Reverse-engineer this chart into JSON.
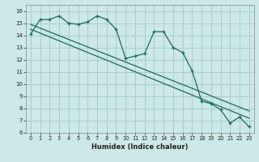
{
  "xlabel": "Humidex (Indice chaleur)",
  "bg_color": "#cce8e8",
  "grid_color": "#aacccc",
  "line_color": "#1a6b5a",
  "xlim": [
    -0.5,
    23.5
  ],
  "ylim": [
    6,
    16.5
  ],
  "x_ticks": [
    0,
    1,
    2,
    3,
    4,
    5,
    6,
    7,
    8,
    9,
    10,
    11,
    12,
    13,
    14,
    15,
    16,
    17,
    18,
    19,
    20,
    21,
    22,
    23
  ],
  "y_ticks": [
    6,
    7,
    8,
    9,
    10,
    11,
    12,
    13,
    14,
    15,
    16
  ],
  "series1": [
    14.1,
    15.3,
    15.3,
    15.6,
    15.0,
    14.9,
    15.1,
    15.6,
    15.3,
    14.5,
    12.1,
    12.3,
    12.5,
    14.3,
    14.3,
    13.0,
    12.6,
    11.1,
    8.6,
    8.4,
    7.9,
    6.8,
    7.3,
    6.5
  ],
  "trend1_x": [
    0,
    23
  ],
  "trend1_y": [
    14.9,
    7.8
  ],
  "trend2_x": [
    0,
    23
  ],
  "trend2_y": [
    14.5,
    7.2
  ]
}
